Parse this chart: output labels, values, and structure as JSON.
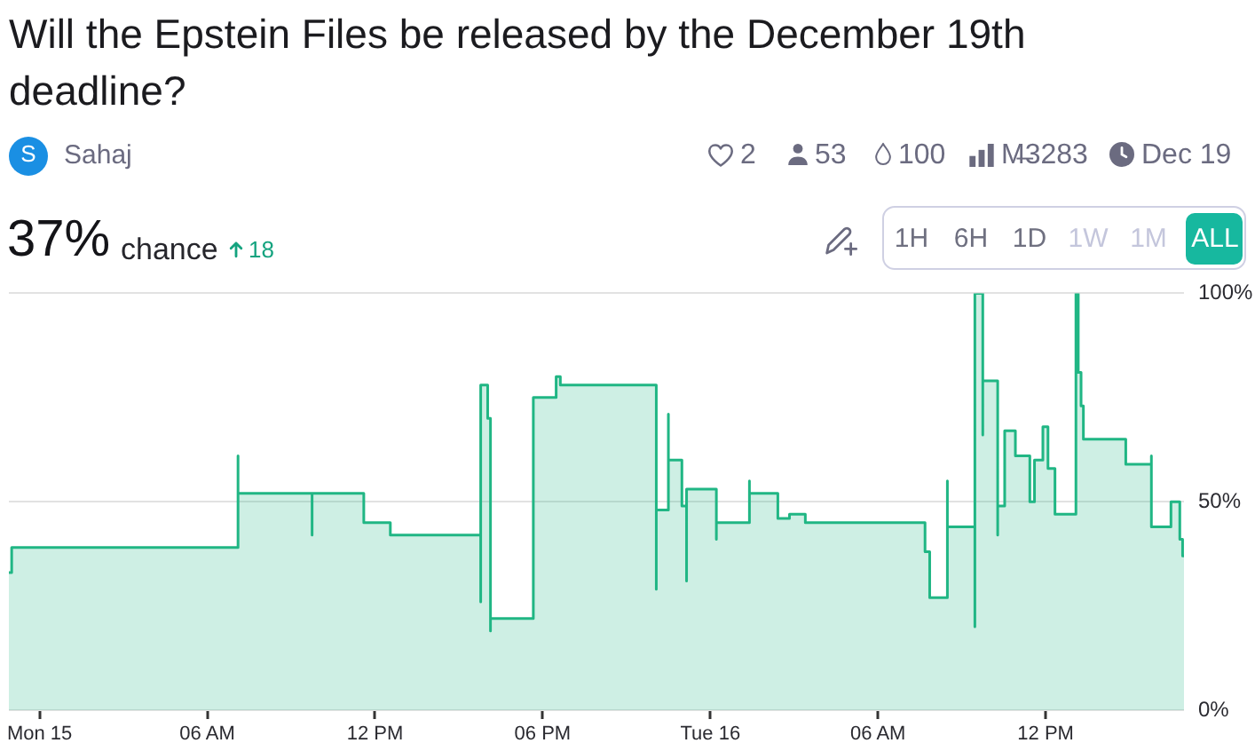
{
  "chart_data": {
    "type": "area",
    "title": "Will the Epstein Files be released by the December 19th deadline?",
    "annotations": [
      "S",
      "Sahaj",
      "2",
      "53",
      "100",
      "M̶3283",
      "Dec 19",
      "37%",
      "chance",
      "18",
      "1H",
      "6H",
      "1D",
      "1W",
      "1M",
      "ALL"
    ],
    "x": [
      "--12-14T22:54",
      "--12-14T23:00",
      "--12-14T23:00",
      "--12-15T07:06",
      "--12-15T07:06",
      "--12-15T07:06",
      "--12-15T09:45",
      "--12-15T09:45",
      "--12-15T09:45",
      "--12-15T11:36",
      "--12-15T11:36",
      "--12-15T12:33",
      "--12-15T12:33",
      "--12-15T15:47",
      "--12-15T15:47",
      "--12-15T15:47",
      "--12-15T16:02",
      "--12-15T16:02",
      "--12-15T16:08",
      "--12-15T16:08",
      "--12-15T16:08",
      "--12-15T17:40",
      "--12-15T17:40",
      "--12-15T18:29",
      "--12-15T18:29",
      "--12-15T18:38",
      "--12-15T18:38",
      "--12-15T22:04",
      "--12-15T22:04",
      "--12-15T22:04",
      "--12-15T22:30",
      "--12-15T22:30",
      "--12-15T22:30",
      "--12-15T22:59",
      "--12-15T22:59",
      "--12-15T23:09",
      "--12-15T23:09",
      "--12-15T23:09",
      "--12-16T00:13",
      "--12-16T00:13",
      "--12-16T00:13",
      "--12-16T01:24",
      "--12-16T01:24",
      "--12-16T01:24",
      "--12-16T02:25",
      "--12-16T02:25",
      "--12-16T02:50",
      "--12-16T02:50",
      "--12-16T03:24",
      "--12-16T03:24",
      "--12-16T07:41",
      "--12-16T07:41",
      "--12-16T07:51",
      "--12-16T07:51",
      "--12-16T08:29",
      "--12-16T08:29",
      "--12-16T08:29",
      "--12-16T09:28",
      "--12-16T09:28",
      "--12-16T09:28",
      "--12-16T09:45",
      "--12-16T09:45",
      "--12-16T09:45",
      "--12-16T10:17",
      "--12-16T10:17",
      "--12-16T10:17",
      "--12-16T10:32",
      "--12-16T10:32",
      "--12-16T10:55",
      "--12-16T10:55",
      "--12-16T11:26",
      "--12-16T11:26",
      "--12-16T11:36",
      "--12-16T11:36",
      "--12-16T11:54",
      "--12-16T11:54",
      "--12-16T12:05",
      "--12-16T12:05",
      "--12-16T12:20",
      "--12-16T12:20",
      "--12-16T13:05",
      "--12-16T13:05",
      "--12-16T13:10",
      "--12-16T13:10",
      "--12-16T13:16",
      "--12-16T13:16",
      "--12-16T13:21",
      "--12-16T13:21",
      "--12-16T14:52",
      "--12-16T14:52",
      "--12-16T15:47",
      "--12-16T15:47",
      "--12-16T15:47",
      "--12-16T16:29",
      "--12-16T16:29",
      "--12-16T16:48",
      "--12-16T16:48",
      "--12-16T16:54",
      "--12-16T16:54",
      "--12-16T16:57"
    ],
    "values": [
      33,
      33,
      39,
      39,
      61,
      52,
      52,
      42,
      52,
      52,
      45,
      45,
      42,
      42,
      26,
      78,
      78,
      70,
      70,
      19,
      22,
      22,
      75,
      75,
      80,
      80,
      78,
      78,
      29,
      48,
      48,
      71,
      60,
      60,
      49,
      49,
      31,
      53,
      53,
      41,
      45,
      45,
      55,
      52,
      52,
      46,
      46,
      47,
      47,
      45,
      45,
      38,
      38,
      27,
      27,
      55,
      44,
      44,
      20,
      100,
      100,
      66,
      79,
      79,
      42,
      49,
      49,
      67,
      67,
      61,
      61,
      50,
      50,
      60,
      60,
      68,
      68,
      58,
      58,
      47,
      47,
      100,
      100,
      81,
      81,
      73,
      73,
      65,
      65,
      59,
      59,
      61,
      44,
      44,
      50,
      50,
      41,
      41,
      37,
      37
    ],
    "color": "#20b684",
    "xlim": [
      "--12-14T22:54",
      "--12-16T16:57"
    ],
    "xticks": [
      {
        "value": "--12-15T00:00",
        "label": "Mon 15"
      },
      {
        "value": "--12-15T06:00",
        "label": "06 AM"
      },
      {
        "value": "--12-15T12:00",
        "label": "12 PM"
      },
      {
        "value": "--12-15T18:00",
        "label": "06 PM"
      },
      {
        "value": "--12-16T00:00",
        "label": "Tue 16"
      },
      {
        "value": "--12-16T06:00",
        "label": "06 AM"
      },
      {
        "value": "--12-16T12:00",
        "label": "12 PM"
      }
    ],
    "ylim": [
      0,
      100
    ],
    "yticks": [
      {
        "value": 0,
        "label": "0%"
      },
      {
        "value": 50,
        "label": "50%"
      },
      {
        "value": 100,
        "label": "100%"
      }
    ],
    "grid": "y",
    "legend": false,
    "marker": "none"
  }
}
